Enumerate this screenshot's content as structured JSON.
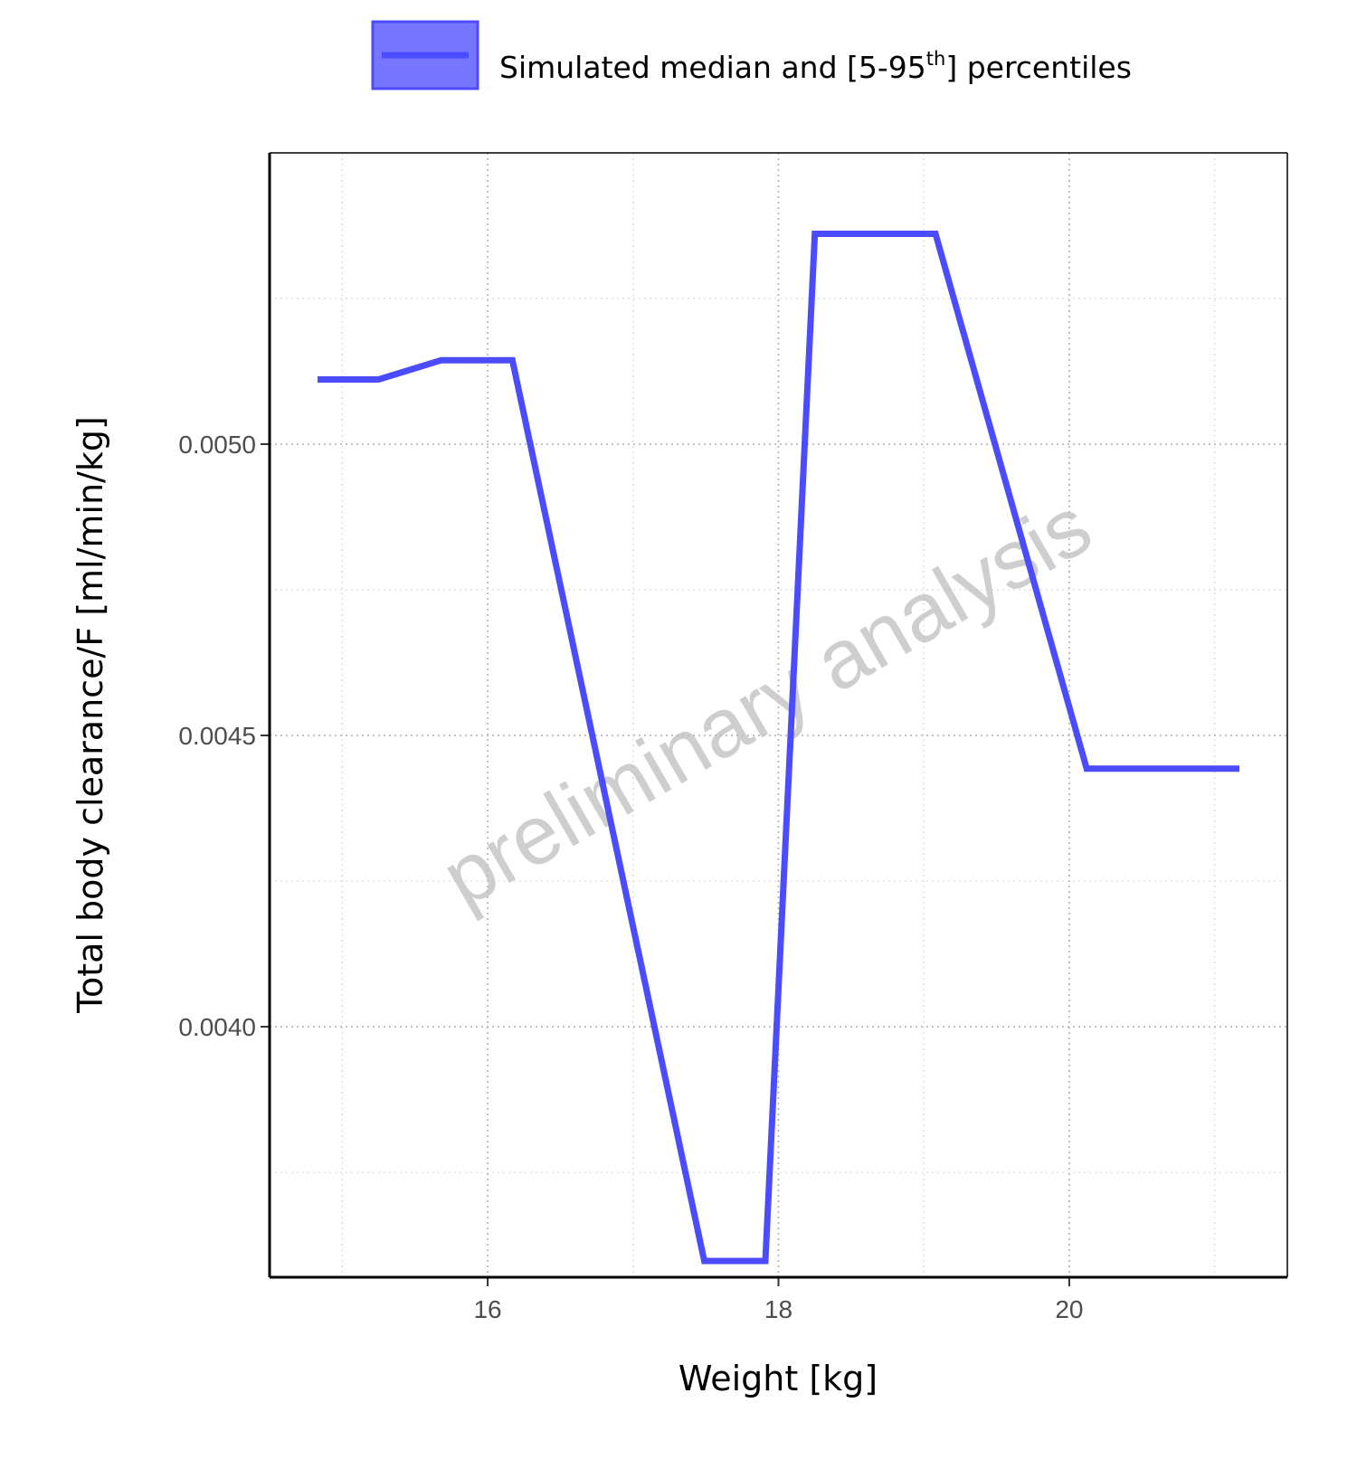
{
  "legend": {
    "label_main": "Simulated median and [5-95",
    "label_sup": "th",
    "label_end": "] percentiles"
  },
  "watermark": "preliminary analysis",
  "chart_data": {
    "type": "line",
    "xlabel": "Weight [kg]",
    "ylabel": "Total body clearance/F [ml/min/kg]",
    "xlim": [
      14.5,
      21.5
    ],
    "ylim": [
      0.00357,
      0.0055
    ],
    "x_ticks": [
      16,
      18,
      20
    ],
    "x_tick_labels": [
      "16",
      "18",
      "20"
    ],
    "y_ticks": [
      0.004,
      0.0045,
      0.005
    ],
    "y_tick_labels": [
      "0.0040",
      "0.0045",
      "0.0050"
    ],
    "x_minor_grid": [
      15,
      17,
      19,
      21
    ],
    "y_minor_grid": [
      0.00375,
      0.00425,
      0.00475,
      0.00525
    ],
    "grid": true,
    "legend_position": "top",
    "colors": {
      "series": "#4b4bff",
      "band_fill": "#7575ff"
    },
    "series": [
      {
        "name": "Simulated median and [5-95th] percentiles",
        "x": [
          14.83,
          15.25,
          15.68,
          16.17,
          17.49,
          17.91,
          18.25,
          19.08,
          20.12,
          21.17
        ],
        "y": [
          0.005111,
          0.005111,
          0.005144,
          0.005144,
          0.003598,
          0.003598,
          0.005361,
          0.005361,
          0.004443,
          0.004443
        ]
      }
    ]
  }
}
